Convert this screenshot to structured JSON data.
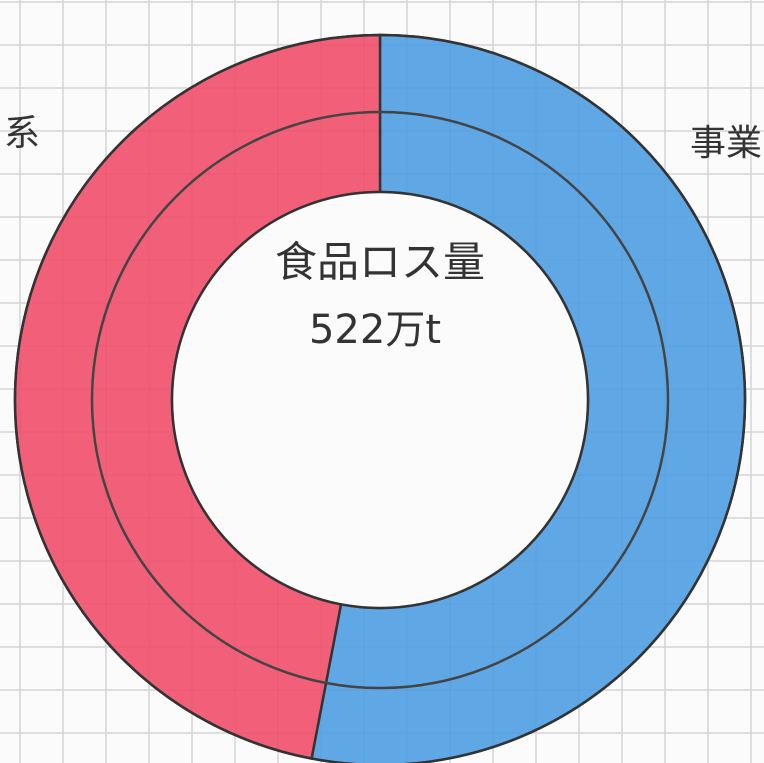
{
  "chart_data": {
    "type": "donut",
    "title": "食品ロス量",
    "subtitle": "522万t",
    "categories": [
      "事業",
      "系"
    ],
    "values": [
      53,
      47
    ],
    "colors": [
      "#4f9fe3",
      "#f0506a"
    ]
  }
}
